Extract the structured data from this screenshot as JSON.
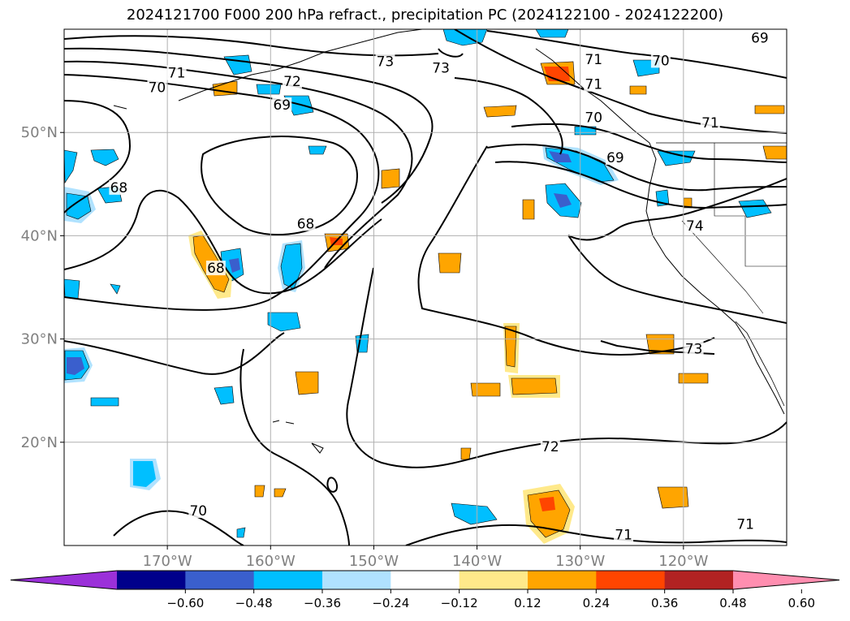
{
  "title": "2024121700 F000 200 hPa refract., precipitation PC (2024122100 - 2024122200)",
  "map": {
    "lon_range": [
      -180,
      -110
    ],
    "lat_range": [
      10,
      60
    ],
    "lon_ticks": [
      {
        "lon": -170,
        "label": "170°W"
      },
      {
        "lon": -160,
        "label": "160°W"
      },
      {
        "lon": -150,
        "label": "150°W"
      },
      {
        "lon": -140,
        "label": "140°W"
      },
      {
        "lon": -130,
        "label": "130°W"
      },
      {
        "lon": -120,
        "label": "120°W"
      }
    ],
    "lat_ticks": [
      {
        "lat": 20,
        "label": "20°N"
      },
      {
        "lat": 30,
        "label": "30°N"
      },
      {
        "lat": 40,
        "label": "40°N"
      },
      {
        "lat": 50,
        "label": "50°N"
      }
    ],
    "grid": true,
    "contour_labels": [
      {
        "text": "73",
        "lon": -148.9,
        "lat": 56.8
      },
      {
        "text": "73",
        "lon": -143.5,
        "lat": 56.2
      },
      {
        "text": "71",
        "lon": -169.1,
        "lat": 55.7
      },
      {
        "text": "72",
        "lon": -157.9,
        "lat": 54.9
      },
      {
        "text": "70",
        "lon": -171.0,
        "lat": 54.3
      },
      {
        "text": "69",
        "lon": -158.9,
        "lat": 52.6
      },
      {
        "text": "71",
        "lon": -128.7,
        "lat": 57.0
      },
      {
        "text": "70",
        "lon": -122.2,
        "lat": 56.9
      },
      {
        "text": "69",
        "lon": -112.6,
        "lat": 59.1
      },
      {
        "text": "71",
        "lon": -128.7,
        "lat": 54.6
      },
      {
        "text": "70",
        "lon": -128.7,
        "lat": 51.4
      },
      {
        "text": "71",
        "lon": -117.4,
        "lat": 50.9
      },
      {
        "text": "69",
        "lon": -126.6,
        "lat": 47.5
      },
      {
        "text": "68",
        "lon": -174.7,
        "lat": 44.6
      },
      {
        "text": "68",
        "lon": -156.6,
        "lat": 41.1
      },
      {
        "text": "68",
        "lon": -165.3,
        "lat": 36.8
      },
      {
        "text": "74",
        "lon": -118.9,
        "lat": 40.9
      },
      {
        "text": "73",
        "lon": -119.0,
        "lat": 29.0
      },
      {
        "text": "72",
        "lon": -132.9,
        "lat": 19.5
      },
      {
        "text": "70",
        "lon": -167.0,
        "lat": 13.3
      },
      {
        "text": "71",
        "lon": -125.8,
        "lat": 11.0
      },
      {
        "text": "71",
        "lon": -114.0,
        "lat": 12.0
      }
    ],
    "colors": {
      "coast": "#000000",
      "grid": "#b0b0b0",
      "tick_label": "#808080"
    }
  },
  "colorbar": {
    "bins": [
      {
        "color": "#9b30d9"
      },
      {
        "color": "#00008b"
      },
      {
        "color": "#3a5fcd"
      },
      {
        "color": "#00bfff"
      },
      {
        "color": "#b0e2ff"
      },
      {
        "color": "#ffffff"
      },
      {
        "color": "#ffe98a"
      },
      {
        "color": "#ffa500"
      },
      {
        "color": "#ff4500"
      },
      {
        "color": "#b22222"
      },
      {
        "color": "#ff8eb0"
      }
    ],
    "ticks": [
      "−0.60",
      "−0.48",
      "−0.36",
      "−0.24",
      "−0.12",
      "0.12",
      "0.24",
      "0.36",
      "0.48",
      "0.60"
    ]
  }
}
